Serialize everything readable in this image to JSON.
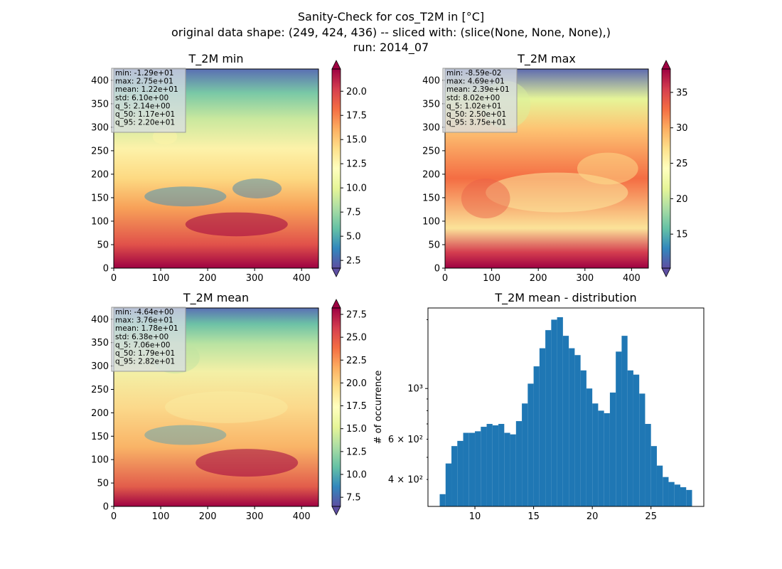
{
  "figure": {
    "title_lines": [
      "Sanity-Check for cos_T2M in [°C]",
      "original data shape: (249, 424, 436) -- sliced with: (slice(None, None, None),)",
      "run: 2014_07"
    ]
  },
  "chart_data": [
    {
      "type": "heatmap",
      "title": "T_2M min",
      "x_ticks": [
        0,
        100,
        200,
        300,
        400
      ],
      "y_ticks": [
        0,
        50,
        100,
        150,
        200,
        250,
        300,
        350,
        400
      ],
      "xlim": [
        0,
        436
      ],
      "ylim": [
        0,
        424
      ],
      "colormap": "Spectral_r",
      "colorbar": {
        "range": [
          1.7,
          22.3
        ],
        "ticks": [
          2.5,
          5.0,
          7.5,
          10.0,
          12.5,
          15.0,
          17.5,
          20.0
        ],
        "extend": "both"
      },
      "stats": [
        "min: -1.29e+01",
        "max: 2.75e+01",
        "mean: 1.22e+01",
        "std: 6.10e+00",
        "q_5: 2.14e+00",
        "q_50: 1.17e+01",
        "q_95: 2.20e+01"
      ]
    },
    {
      "type": "heatmap",
      "title": "T_2M max",
      "x_ticks": [
        0,
        100,
        200,
        300,
        400
      ],
      "y_ticks": [
        0,
        50,
        100,
        150,
        200,
        250,
        300,
        350,
        400
      ],
      "xlim": [
        0,
        436
      ],
      "ylim": [
        0,
        424
      ],
      "colormap": "Spectral_r",
      "colorbar": {
        "range": [
          10.2,
          38.3
        ],
        "ticks": [
          15,
          20,
          25,
          30,
          35
        ],
        "extend": "both"
      },
      "stats": [
        "min: -8.59e-02",
        "max: 4.69e+01",
        "mean: 2.39e+01",
        "std: 8.02e+00",
        "q_5: 1.02e+01",
        "q_50: 2.50e+01",
        "q_95: 3.75e+01"
      ]
    },
    {
      "type": "heatmap",
      "title": "T_2M mean",
      "x_ticks": [
        0,
        100,
        200,
        300,
        400
      ],
      "y_ticks": [
        0,
        50,
        100,
        150,
        200,
        250,
        300,
        350,
        400
      ],
      "xlim": [
        0,
        436
      ],
      "ylim": [
        0,
        424
      ],
      "colormap": "Spectral_r",
      "colorbar": {
        "range": [
          6.5,
          28.2
        ],
        "ticks": [
          7.5,
          10.0,
          12.5,
          15.0,
          17.5,
          20.0,
          22.5,
          25.0,
          27.5
        ],
        "extend": "both"
      },
      "stats": [
        "min: -4.64e+00",
        "max: 3.76e+01",
        "mean: 1.78e+01",
        "std: 6.38e+00",
        "q_5: 7.06e+00",
        "q_50: 1.79e+01",
        "q_95: 2.82e+01"
      ]
    },
    {
      "type": "bar",
      "title": "T_2M mean - distribution",
      "ylabel": "# of occurrence",
      "yscale": "log",
      "xlim": [
        6.0,
        29.5
      ],
      "ylim": [
        305,
        2250
      ],
      "x_ticks": [
        10,
        15,
        20,
        25
      ],
      "y_ticks_major": [
        1000
      ],
      "y_ticks_labeled_minor": [
        400,
        600
      ],
      "y_tick_labels": {
        "400": "4 × 10²",
        "600": "6 × 10²",
        "1000": "10³"
      },
      "bar_color": "#1f77b4",
      "x": [
        7.0,
        7.5,
        8.0,
        8.5,
        9.0,
        9.5,
        10.0,
        10.5,
        11.0,
        11.5,
        12.0,
        12.5,
        13.0,
        13.5,
        14.0,
        14.5,
        15.0,
        15.5,
        16.0,
        16.5,
        17.0,
        17.5,
        18.0,
        18.5,
        19.0,
        19.5,
        20.0,
        20.5,
        21.0,
        21.5,
        22.0,
        22.5,
        23.0,
        23.5,
        24.0,
        24.5,
        25.0,
        25.5,
        26.0,
        26.5,
        27.0,
        27.5,
        28.0
      ],
      "values": [
        345,
        470,
        560,
        590,
        640,
        640,
        650,
        680,
        700,
        690,
        700,
        640,
        630,
        720,
        860,
        1050,
        1250,
        1500,
        1800,
        2000,
        2050,
        1700,
        1500,
        1400,
        1200,
        1000,
        860,
        800,
        780,
        960,
        1450,
        1700,
        1200,
        1150,
        950,
        700,
        560,
        460,
        410,
        390,
        380,
        370,
        360
      ]
    }
  ]
}
